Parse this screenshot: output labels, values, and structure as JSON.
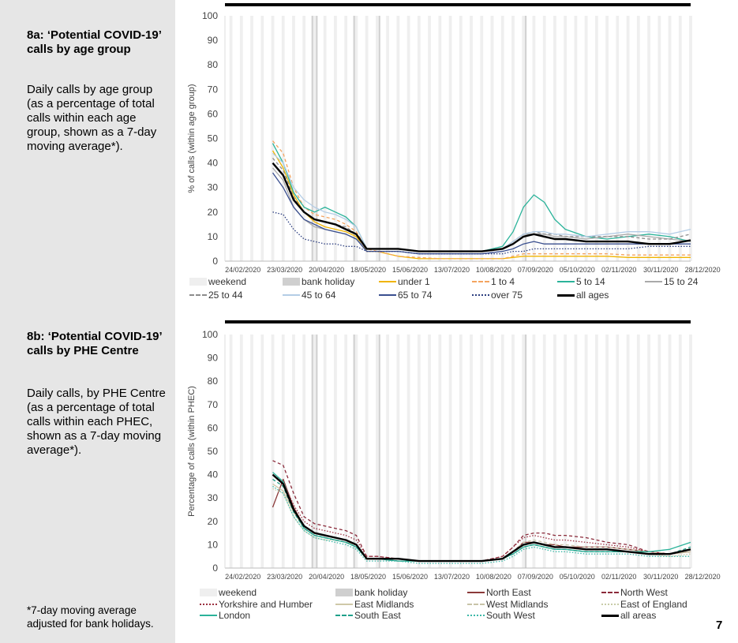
{
  "sidebar": {
    "a_title": "8a: ‘Potential COVID-19’ calls by age group",
    "a_desc": "Daily calls by age group (as a percentage of total calls within each age group, shown as a 7-day moving average*).",
    "b_title": "8b: ‘Potential COVID-19’ calls by PHE Centre",
    "b_desc": "Daily calls, by PHE Centre (as a percentage of total calls within each PHEC, shown as a 7-day moving average*).",
    "footnote": "*7-day moving average adjusted for bank holidays."
  },
  "page_number": "7",
  "chart_data": [
    {
      "type": "line",
      "ylabel": "% of calls (within age group)",
      "ylim": [
        0,
        100
      ],
      "yticks": [
        "0",
        "10",
        "20",
        "30",
        "40",
        "50",
        "60",
        "70",
        "80",
        "90",
        "100"
      ],
      "xlim": [
        "2020-02-12",
        "2020-12-20"
      ],
      "xtick_labels": [
        "24/02/2020",
        "23/03/2020",
        "20/04/2020",
        "18/05/2020",
        "15/06/2020",
        "13/07/2020",
        "10/08/2020",
        "07/09/2020",
        "05/10/2020",
        "02/11/2020",
        "30/11/2020",
        "28/12/2020"
      ],
      "weekend_label": "weekend",
      "bank_holiday_label": "bank holiday",
      "bank_holidays": [
        "2020-04-10",
        "2020-04-13",
        "2020-05-08",
        "2020-05-25",
        "2020-08-31"
      ],
      "x": [
        "2020-03-15",
        "2020-03-22",
        "2020-03-29",
        "2020-04-05",
        "2020-04-12",
        "2020-04-19",
        "2020-04-26",
        "2020-05-03",
        "2020-05-10",
        "2020-05-17",
        "2020-05-24",
        "2020-06-07",
        "2020-06-21",
        "2020-07-05",
        "2020-07-19",
        "2020-08-02",
        "2020-08-16",
        "2020-08-23",
        "2020-08-30",
        "2020-09-06",
        "2020-09-13",
        "2020-09-20",
        "2020-09-27",
        "2020-10-11",
        "2020-10-25",
        "2020-11-08",
        "2020-11-22",
        "2020-12-06",
        "2020-12-20"
      ],
      "series": [
        {
          "name": "under 1",
          "color": "#f0b400",
          "style": "solid",
          "values": [
            45,
            38,
            27,
            20,
            16,
            14,
            13,
            12,
            10,
            4,
            4,
            2,
            1,
            1,
            1,
            1,
            1,
            1.5,
            2,
            2,
            2,
            2,
            2,
            2,
            2,
            1.5,
            1.5,
            1.5,
            1.5
          ]
        },
        {
          "name": "1 to 4",
          "color": "#f4a460",
          "style": "dashed",
          "values": [
            49,
            44,
            30,
            22,
            19,
            18,
            17,
            15,
            12,
            5,
            4,
            2,
            1.5,
            1,
            1,
            1,
            1,
            2,
            3,
            3,
            3,
            3,
            3,
            3,
            3,
            2.5,
            2.5,
            2.5,
            2.5
          ]
        },
        {
          "name": "5 to 14",
          "color": "#2bb39a",
          "style": "solid",
          "values": [
            48,
            40,
            28,
            22,
            20,
            22,
            20,
            18,
            14,
            5,
            5,
            5,
            4,
            4,
            4,
            4,
            6,
            12,
            22,
            27,
            24,
            17,
            13,
            10,
            9,
            10,
            11,
            10,
            8
          ]
        },
        {
          "name": "15 to 24",
          "color": "#aaaaaa",
          "style": "solid",
          "values": [
            38,
            33,
            22,
            17,
            14,
            13,
            12,
            11,
            9,
            5,
            5,
            5,
            4,
            4,
            4,
            4,
            5,
            8,
            11,
            11,
            11,
            10,
            10,
            9,
            10,
            11,
            10,
            9,
            8
          ]
        },
        {
          "name": "25 to 44",
          "color": "#8c8c8c",
          "style": "dashed",
          "values": [
            42,
            37,
            26,
            20,
            17,
            16,
            15,
            14,
            11,
            5,
            5,
            5,
            4,
            4,
            4,
            4,
            5,
            8,
            11,
            12,
            11,
            11,
            10,
            10,
            10,
            10,
            9,
            9,
            11
          ]
        },
        {
          "name": "45 to 64",
          "color": "#b4cde6",
          "style": "solid",
          "values": [
            44,
            40,
            30,
            25,
            22,
            20,
            19,
            17,
            14,
            5,
            5,
            5,
            4,
            4,
            4,
            4,
            5,
            8,
            11,
            12,
            12,
            11,
            11,
            10,
            11,
            12,
            12,
            11,
            13
          ]
        },
        {
          "name": "65 to 74",
          "color": "#3a4f8f",
          "style": "solid",
          "values": [
            36,
            30,
            22,
            17,
            15,
            13,
            12,
            11,
            9,
            4,
            4,
            4,
            3,
            3,
            3,
            3,
            4,
            5,
            7,
            8,
            7,
            7,
            7,
            7,
            7,
            7,
            7,
            7,
            7
          ]
        },
        {
          "name": "over 75",
          "color": "#2c3e80",
          "style": "dotted",
          "values": [
            20,
            19,
            13,
            9,
            8,
            7,
            7,
            6,
            6,
            4,
            4,
            4,
            3,
            3,
            3,
            3,
            3,
            4,
            4,
            5,
            5,
            5,
            5,
            5,
            5,
            5,
            6,
            6,
            6
          ]
        },
        {
          "name": "all ages",
          "color": "#000000",
          "style": "bold",
          "values": [
            40,
            35,
            25,
            20,
            17,
            16,
            15,
            13,
            11,
            5,
            5,
            5,
            4,
            4,
            4,
            4,
            5,
            7,
            10,
            11,
            10,
            9,
            9,
            8,
            8,
            8,
            7,
            7,
            8.5
          ]
        }
      ]
    },
    {
      "type": "line",
      "ylabel": "Percentage of calls (within PHEC)",
      "ylim": [
        0,
        100
      ],
      "yticks": [
        "0",
        "10",
        "20",
        "30",
        "40",
        "50",
        "60",
        "70",
        "80",
        "90",
        "100"
      ],
      "xlim": [
        "2020-02-12",
        "2020-12-20"
      ],
      "xtick_labels": [
        "24/02/2020",
        "23/03/2020",
        "20/04/2020",
        "18/05/2020",
        "15/06/2020",
        "13/07/2020",
        "10/08/2020",
        "07/09/2020",
        "05/10/2020",
        "02/11/2020",
        "30/11/2020",
        "28/12/2020"
      ],
      "weekend_label": "weekend",
      "bank_holiday_label": "bank holiday",
      "bank_holidays": [
        "2020-04-10",
        "2020-04-13",
        "2020-05-08",
        "2020-05-25",
        "2020-08-31"
      ],
      "x": [
        "2020-03-15",
        "2020-03-22",
        "2020-03-29",
        "2020-04-05",
        "2020-04-12",
        "2020-04-19",
        "2020-04-26",
        "2020-05-03",
        "2020-05-10",
        "2020-05-17",
        "2020-05-24",
        "2020-06-07",
        "2020-06-21",
        "2020-07-05",
        "2020-07-19",
        "2020-08-02",
        "2020-08-16",
        "2020-08-23",
        "2020-08-30",
        "2020-09-06",
        "2020-09-13",
        "2020-09-20",
        "2020-09-27",
        "2020-10-11",
        "2020-10-25",
        "2020-11-08",
        "2020-11-22",
        "2020-12-06",
        "2020-12-20"
      ],
      "series": [
        {
          "name": "North East",
          "color": "#8b3a3a",
          "style": "solid",
          "values": [
            26,
            38,
            26,
            18,
            15,
            14,
            13,
            12,
            10,
            4,
            4,
            4,
            3,
            3,
            3,
            3,
            4,
            7,
            11,
            11,
            10,
            10,
            9,
            9,
            9,
            8,
            7,
            6,
            7
          ]
        },
        {
          "name": "North West",
          "color": "#8b2a3a",
          "style": "dashed",
          "values": [
            46,
            44,
            32,
            22,
            19,
            18,
            17,
            16,
            14,
            5,
            5,
            4,
            3,
            3,
            3,
            3,
            5,
            9,
            14,
            15,
            15,
            14,
            14,
            13,
            11,
            10,
            7,
            6,
            8
          ]
        },
        {
          "name": "Yorkshire and Humber",
          "color": "#9b3040",
          "style": "dotted",
          "values": [
            40,
            37,
            27,
            20,
            17,
            16,
            15,
            14,
            12,
            5,
            5,
            4,
            3,
            3,
            3,
            3,
            5,
            9,
            13,
            14,
            13,
            12,
            12,
            11,
            10,
            9,
            7,
            6,
            7
          ]
        },
        {
          "name": "East Midlands",
          "color": "#cfc8a8",
          "style": "solid",
          "values": [
            36,
            33,
            24,
            17,
            14,
            13,
            12,
            11,
            10,
            4,
            4,
            3,
            3,
            3,
            3,
            3,
            4,
            7,
            10,
            11,
            10,
            9,
            9,
            8,
            8,
            7,
            6,
            6,
            7
          ]
        },
        {
          "name": "West Midlands",
          "color": "#c8c4a8",
          "style": "dashed",
          "values": [
            38,
            35,
            25,
            18,
            15,
            14,
            13,
            12,
            10,
            4,
            4,
            4,
            3,
            3,
            3,
            3,
            4,
            7,
            11,
            12,
            11,
            10,
            10,
            9,
            9,
            8,
            7,
            6,
            8
          ]
        },
        {
          "name": "East of England",
          "color": "#c8cca8",
          "style": "dotted",
          "values": [
            34,
            32,
            22,
            16,
            13,
            12,
            12,
            11,
            9,
            4,
            4,
            3,
            3,
            3,
            3,
            3,
            4,
            6,
            9,
            10,
            9,
            8,
            8,
            7,
            7,
            7,
            6,
            5,
            6
          ]
        },
        {
          "name": "London",
          "color": "#2bb39a",
          "style": "solid",
          "values": [
            41,
            37,
            25,
            17,
            14,
            13,
            12,
            11,
            9,
            4,
            4,
            3,
            3,
            3,
            3,
            3,
            4,
            6,
            9,
            10,
            9,
            8,
            8,
            7,
            7,
            7,
            7,
            8,
            11
          ]
        },
        {
          "name": "South East",
          "color": "#1fa08a",
          "style": "dashed",
          "values": [
            38,
            35,
            24,
            17,
            14,
            13,
            12,
            11,
            9,
            4,
            4,
            3,
            3,
            3,
            3,
            3,
            4,
            6,
            9,
            10,
            9,
            8,
            8,
            7,
            7,
            7,
            6,
            6,
            9
          ]
        },
        {
          "name": "South West",
          "color": "#3cb8a8",
          "style": "dotted",
          "values": [
            35,
            32,
            22,
            16,
            13,
            12,
            11,
            10,
            8,
            3,
            3,
            3,
            2,
            2,
            2,
            2,
            3,
            5,
            8,
            9,
            8,
            7,
            7,
            6,
            6,
            6,
            5,
            5,
            5
          ]
        },
        {
          "name": "all areas",
          "color": "#000000",
          "style": "bold",
          "values": [
            40,
            36,
            25,
            18,
            15,
            14,
            13,
            12,
            10,
            4,
            4,
            4,
            3,
            3,
            3,
            3,
            4,
            7,
            10,
            11,
            10,
            9,
            9,
            8,
            8,
            7,
            6,
            6,
            8
          ]
        }
      ]
    }
  ]
}
